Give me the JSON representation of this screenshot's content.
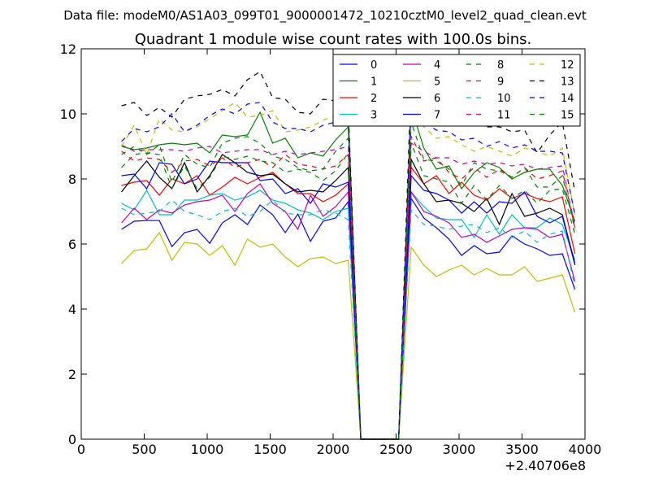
{
  "chart_data": {
    "type": "line",
    "suptitle": "Data file: modeM0/AS1A03_099T01_9000001472_10210cztM0_level2_quad_clean.evt",
    "title": "Quadrant 1 module wise count rates with 100.0s bins.",
    "xlabel": "",
    "ylabel": "",
    "x_offset_label": "+2.40706e8",
    "xlim": [
      0,
      4000
    ],
    "ylim": [
      0,
      12
    ],
    "xticks": [
      0,
      500,
      1000,
      1500,
      2000,
      2500,
      3000,
      3500,
      4000
    ],
    "yticks": [
      0,
      2,
      4,
      6,
      8,
      10,
      12
    ],
    "xtick_labels": [
      "0",
      "500",
      "1000",
      "1500",
      "2000",
      "2500",
      "3000",
      "3500",
      "4000"
    ],
    "ytick_labels": [
      "0",
      "2",
      "4",
      "6",
      "8",
      "10",
      "12"
    ],
    "legend_position": "top-right",
    "x": [
      320,
      420,
      520,
      620,
      720,
      820,
      920,
      1020,
      1120,
      1220,
      1320,
      1420,
      1520,
      1620,
      1720,
      1820,
      1920,
      2020,
      2120,
      2220,
      2320,
      2420,
      2520,
      2620,
      2720,
      2820,
      2920,
      3020,
      3120,
      3220,
      3320,
      3420,
      3520,
      3620,
      3720,
      3820,
      3920
    ],
    "series": [
      {
        "name": "0",
        "color": "#0000ff",
        "dash": false,
        "values": [
          6.45,
          6.7,
          6.72,
          6.72,
          5.92,
          6.35,
          6.45,
          6.02,
          6.65,
          6.9,
          6.6,
          7.2,
          6.9,
          6.35,
          6.92,
          6.08,
          6.7,
          6.8,
          7.3,
          0,
          0,
          0,
          0,
          7.4,
          6.8,
          6.5,
          6.15,
          5.65,
          5.95,
          5.7,
          5.75,
          6.25,
          6.0,
          5.85,
          5.65,
          5.7,
          4.6
        ]
      },
      {
        "name": "1",
        "color": "#008000",
        "dash": false,
        "values": [
          9.0,
          8.9,
          8.95,
          9.05,
          9.1,
          9.05,
          9.1,
          8.8,
          9.35,
          9.3,
          9.35,
          10.05,
          9.1,
          9.25,
          8.65,
          8.8,
          8.7,
          9.2,
          9.6,
          0,
          0,
          0,
          0,
          10.2,
          8.95,
          8.3,
          8.4,
          7.7,
          8.2,
          8.5,
          8.35,
          8.0,
          8.2,
          8.3,
          8.3,
          7.8,
          6.7
        ]
      },
      {
        "name": "2",
        "color": "#ff0000",
        "dash": false,
        "values": [
          7.8,
          7.9,
          7.95,
          7.5,
          8.0,
          7.85,
          8.1,
          7.5,
          7.75,
          8.05,
          7.85,
          8.05,
          8.2,
          7.85,
          7.55,
          7.55,
          7.3,
          7.5,
          7.85,
          0,
          0,
          0,
          0,
          8.35,
          7.85,
          8.1,
          7.55,
          7.9,
          7.5,
          7.35,
          7.7,
          7.4,
          7.55,
          7.4,
          7.3,
          7.45,
          5.7
        ]
      },
      {
        "name": "3",
        "color": "#00bfbf",
        "dash": false,
        "values": [
          7.25,
          7.05,
          7.65,
          6.9,
          6.9,
          7.35,
          7.35,
          7.5,
          7.55,
          7.35,
          7.45,
          7.65,
          7.35,
          7.25,
          7.05,
          6.95,
          6.75,
          7.0,
          7.1,
          0,
          0,
          0,
          0,
          7.6,
          7.15,
          6.8,
          6.75,
          6.75,
          6.2,
          6.9,
          6.3,
          6.9,
          6.5,
          6.5,
          6.8,
          6.6,
          5.5
        ]
      },
      {
        "name": "4",
        "color": "#bf00bf",
        "dash": false,
        "values": [
          6.65,
          7.1,
          6.75,
          7.05,
          6.95,
          7.2,
          7.3,
          7.35,
          7.5,
          7.0,
          7.55,
          7.85,
          7.25,
          7.0,
          6.45,
          7.5,
          6.85,
          7.15,
          7.6,
          0,
          0,
          0,
          0,
          7.6,
          7.0,
          6.85,
          6.65,
          6.2,
          6.3,
          6.05,
          6.25,
          6.45,
          6.5,
          6.45,
          6.2,
          6.3,
          4.85
        ]
      },
      {
        "name": "5",
        "color": "#bfbf00",
        "dash": false,
        "values": [
          5.4,
          5.8,
          5.85,
          6.35,
          5.5,
          6.05,
          6.0,
          5.65,
          5.95,
          5.35,
          6.15,
          5.9,
          6.0,
          5.6,
          5.3,
          5.55,
          5.6,
          5.4,
          5.5,
          0,
          0,
          0,
          0,
          5.9,
          5.35,
          5.0,
          5.2,
          5.35,
          5.05,
          5.25,
          5.05,
          5.05,
          5.3,
          4.85,
          4.95,
          5.05,
          3.9
        ]
      },
      {
        "name": "6",
        "color": "#000000",
        "dash": false,
        "values": [
          7.6,
          8.1,
          8.55,
          8.05,
          7.7,
          8.5,
          7.6,
          8.1,
          8.75,
          8.5,
          8.2,
          8.1,
          8.15,
          7.85,
          7.6,
          7.65,
          7.6,
          7.95,
          8.35,
          0,
          0,
          0,
          0,
          8.6,
          7.85,
          7.3,
          7.35,
          7.25,
          7.0,
          7.4,
          6.6,
          7.55,
          6.85,
          6.95,
          7.1,
          6.9,
          5.4
        ]
      },
      {
        "name": "7",
        "color": "#0000ff",
        "dash": false,
        "values": [
          8.1,
          8.15,
          7.7,
          8.5,
          8.45,
          7.85,
          8.0,
          8.55,
          8.5,
          8.5,
          8.5,
          7.95,
          8.0,
          7.55,
          7.7,
          7.25,
          7.85,
          7.75,
          7.9,
          0,
          0,
          0,
          0,
          8.1,
          7.65,
          7.55,
          7.35,
          6.95,
          7.3,
          6.95,
          7.3,
          7.25,
          7.6,
          6.85,
          6.65,
          6.85,
          5.35
        ]
      },
      {
        "name": "8",
        "color": "#008000",
        "dash": true,
        "values": [
          8.35,
          8.75,
          8.8,
          8.75,
          7.7,
          8.4,
          7.7,
          8.05,
          8.7,
          8.6,
          8.7,
          8.55,
          8.5,
          8.2,
          8.3,
          8.2,
          7.95,
          8.25,
          8.8,
          0,
          0,
          0,
          0,
          9.1,
          8.1,
          8.0,
          7.9,
          7.25,
          7.8,
          7.35,
          7.8,
          7.4,
          7.65,
          7.25,
          7.65,
          7.7,
          6.3
        ]
      },
      {
        "name": "9",
        "color": "#ff0000",
        "dash": true,
        "values": [
          8.85,
          8.55,
          8.65,
          8.6,
          8.2,
          8.55,
          8.6,
          8.4,
          8.65,
          8.35,
          8.5,
          8.6,
          8.35,
          8.75,
          8.45,
          8.4,
          8.3,
          8.4,
          8.75,
          0,
          0,
          0,
          0,
          9.3,
          8.55,
          8.65,
          8.2,
          8.0,
          8.35,
          8.05,
          8.3,
          8.05,
          8.35,
          8.0,
          8.1,
          8.25,
          6.5
        ]
      },
      {
        "name": "10",
        "color": "#00bfbf",
        "dash": true,
        "values": [
          7.1,
          6.9,
          6.95,
          7.0,
          7.35,
          7.0,
          6.9,
          6.75,
          7.0,
          7.1,
          6.85,
          7.0,
          7.35,
          6.95,
          6.9,
          6.9,
          7.05,
          6.95,
          6.75,
          0,
          0,
          0,
          0,
          7.05,
          6.6,
          6.55,
          6.45,
          6.55,
          6.6,
          6.35,
          6.5,
          6.2,
          6.4,
          6.05,
          6.3,
          6.4,
          4.7
        ]
      },
      {
        "name": "11",
        "color": "#bf00bf",
        "dash": true,
        "values": [
          9.05,
          8.85,
          8.9,
          8.9,
          8.9,
          8.85,
          8.95,
          9.0,
          8.8,
          8.85,
          8.9,
          8.9,
          8.75,
          8.85,
          8.75,
          8.8,
          8.85,
          8.9,
          9.0,
          0,
          0,
          0,
          0,
          9.1,
          8.85,
          8.65,
          8.65,
          8.45,
          8.55,
          8.45,
          8.5,
          8.4,
          8.45,
          8.3,
          8.35,
          8.4,
          6.55
        ]
      },
      {
        "name": "12",
        "color": "#bfbf00",
        "dash": true,
        "values": [
          9.0,
          9.65,
          8.75,
          9.85,
          9.5,
          9.45,
          9.6,
          9.85,
          10.1,
          10.35,
          9.9,
          9.95,
          10.1,
          9.45,
          9.5,
          9.6,
          9.8,
          9.95,
          9.8,
          0,
          0,
          0,
          0,
          10.3,
          9.6,
          9.25,
          9.3,
          9.05,
          8.85,
          9.0,
          8.85,
          8.7,
          8.95,
          8.85,
          8.7,
          8.95,
          6.9
        ]
      },
      {
        "name": "13",
        "color": "#000000",
        "dash": true,
        "values": [
          10.25,
          10.35,
          9.95,
          10.2,
          9.9,
          10.45,
          10.55,
          10.6,
          10.75,
          10.55,
          11.05,
          11.3,
          10.5,
          10.45,
          10.05,
          10.0,
          10.45,
          10.4,
          10.2,
          0,
          0,
          0,
          0,
          11.1,
          10.25,
          9.95,
          9.85,
          9.9,
          9.75,
          9.6,
          9.6,
          9.45,
          9.5,
          8.8,
          9.35,
          9.75,
          7.6
        ]
      },
      {
        "name": "14",
        "color": "#0000ff",
        "dash": true,
        "values": [
          9.15,
          9.55,
          9.45,
          9.6,
          10.0,
          9.45,
          9.65,
          9.95,
          10.15,
          10.0,
          10.3,
          10.35,
          9.75,
          9.55,
          9.55,
          9.45,
          9.65,
          9.75,
          9.95,
          0,
          0,
          0,
          0,
          10.45,
          9.75,
          9.5,
          9.45,
          9.2,
          9.25,
          9.0,
          9.15,
          8.95,
          9.05,
          8.85,
          8.85,
          8.8,
          6.9
        ]
      },
      {
        "name": "15",
        "color": "#008000",
        "dash": true,
        "values": [
          8.75,
          9.0,
          8.75,
          9.05,
          7.9,
          8.75,
          8.45,
          8.35,
          9.1,
          9.25,
          9.3,
          9.1,
          8.7,
          8.6,
          8.35,
          8.25,
          8.3,
          8.85,
          9.25,
          0,
          0,
          0,
          0,
          9.75,
          8.6,
          8.55,
          8.3,
          7.8,
          8.5,
          8.3,
          8.25,
          8.05,
          8.35,
          7.75,
          7.75,
          8.1,
          6.45
        ]
      }
    ]
  }
}
